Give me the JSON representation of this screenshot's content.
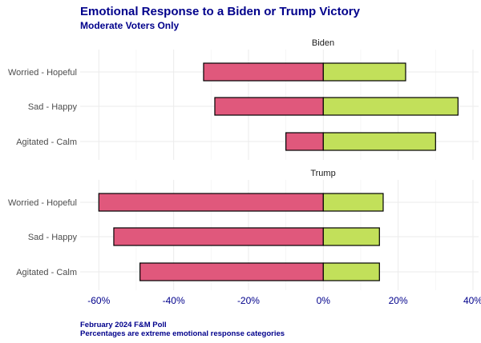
{
  "chart_data": {
    "type": "bar",
    "orientation": "horizontal",
    "stacked": "diverging",
    "title": "Emotional Response to a Biden or Trump Victory",
    "subtitle": "Moderate Voters Only",
    "caption": [
      "February 2024 F&M Poll",
      "Percentages are extreme emotional response categories"
    ],
    "categories": [
      "Worried - Hopeful",
      "Sad - Happy",
      "Agitated - Calm"
    ],
    "xlim": [
      -60,
      40
    ],
    "x_ticks": [
      -60,
      -40,
      -20,
      0,
      20,
      40
    ],
    "x_tick_labels": [
      "-60%",
      "-40%",
      "-20%",
      "0%",
      "20%",
      "40%"
    ],
    "grid": true,
    "colors": {
      "negative": "#e0587c",
      "positive": "#c2e05a",
      "outline": "#000000",
      "title": "#00008b"
    },
    "panels": [
      {
        "label": "Biden",
        "negative": [
          -32,
          -29,
          -10
        ],
        "positive": [
          22,
          36,
          30
        ]
      },
      {
        "label": "Trump",
        "negative": [
          -60,
          -56,
          -49
        ],
        "positive": [
          16,
          15,
          15
        ]
      }
    ]
  }
}
